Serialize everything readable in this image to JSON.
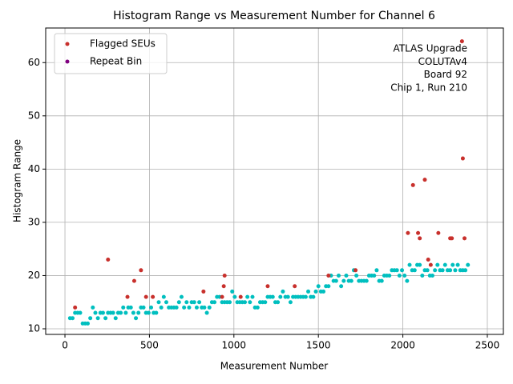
{
  "chart_data": {
    "type": "scatter",
    "title": "Histogram Range vs Measurement Number for Channel 6",
    "xlabel": "Measurement Number",
    "ylabel": "Histogram Range",
    "annotation": [
      "ATLAS Upgrade",
      "COLUTAv4",
      "Board 92",
      "Chip 1, Run 210"
    ],
    "xlim": [
      -114,
      2595
    ],
    "ylim": [
      8.95,
      66.5
    ],
    "xticks": [
      0,
      500,
      1000,
      1500,
      2000,
      2500
    ],
    "yticks": [
      10,
      20,
      30,
      40,
      50,
      60
    ],
    "grid": true,
    "legend": "upper left",
    "series": [
      {
        "color": "#00bfbf",
        "x": [
          30,
          45,
          60,
          75,
          90,
          105,
          120,
          135,
          150,
          165,
          180,
          195,
          210,
          225,
          240,
          255,
          270,
          285,
          300,
          315,
          330,
          345,
          360,
          375,
          390,
          405,
          420,
          435,
          450,
          465,
          480,
          495,
          510,
          525,
          540,
          555,
          570,
          585,
          600,
          615,
          630,
          645,
          660,
          675,
          690,
          705,
          720,
          735,
          750,
          765,
          780,
          795,
          810,
          825,
          840,
          855,
          870,
          885,
          900,
          915,
          930,
          945,
          960,
          975,
          990,
          1005,
          1020,
          1035,
          1050,
          1065,
          1080,
          1095,
          1110,
          1125,
          1140,
          1155,
          1170,
          1185,
          1200,
          1215,
          1230,
          1245,
          1260,
          1275,
          1290,
          1305,
          1320,
          1335,
          1350,
          1365,
          1380,
          1395,
          1410,
          1425,
          1440,
          1455,
          1470,
          1485,
          1500,
          1515,
          1530,
          1545,
          1560,
          1575,
          1590,
          1605,
          1620,
          1635,
          1650,
          1665,
          1680,
          1695,
          1710,
          1725,
          1740,
          1755,
          1770,
          1785,
          1800,
          1815,
          1830,
          1845,
          1860,
          1875,
          1890,
          1905,
          1920,
          1935,
          1950,
          1965,
          1980,
          1995,
          2010,
          2025,
          2040,
          2055,
          2070,
          2085,
          2100,
          2115,
          2130,
          2145,
          2160,
          2175,
          2190,
          2205,
          2220,
          2235,
          2250,
          2265,
          2280,
          2295,
          2310,
          2325,
          2340,
          2355,
          2370,
          2385
        ],
        "values": [
          12,
          12,
          13,
          13,
          13,
          11,
          11,
          11,
          12,
          14,
          13,
          12,
          13,
          13,
          12,
          13,
          13,
          13,
          12,
          13,
          13,
          14,
          13,
          14,
          14,
          13,
          12,
          13,
          14,
          14,
          13,
          13,
          14,
          13,
          13,
          15,
          14,
          16,
          15,
          14,
          14,
          14,
          14,
          15,
          16,
          14,
          15,
          14,
          15,
          15,
          14,
          15,
          14,
          14,
          13,
          14,
          15,
          15,
          16,
          16,
          15,
          15,
          15,
          15,
          17,
          16,
          15,
          15,
          15,
          15,
          16,
          15,
          16,
          14,
          14,
          15,
          15,
          15,
          16,
          16,
          16,
          15,
          15,
          16,
          17,
          16,
          16,
          15,
          16,
          16,
          16,
          16,
          16,
          16,
          17,
          16,
          16,
          17,
          18,
          17,
          17,
          18,
          18,
          20,
          19,
          19,
          20,
          18,
          19,
          20,
          19,
          19,
          21,
          20,
          19,
          19,
          19,
          19,
          20,
          20,
          20,
          21,
          19,
          19,
          20,
          20,
          20,
          21,
          21,
          21,
          20,
          21,
          20,
          19,
          22,
          21,
          21,
          22,
          22,
          20,
          21,
          21,
          20,
          20,
          21,
          22,
          21,
          21,
          22,
          21,
          21,
          22,
          21,
          22,
          21,
          21,
          21,
          22
        ]
      },
      {
        "name": "Flagged SEUs",
        "color": "#c8302c",
        "x": [
          60,
          255,
          370,
          410,
          450,
          480,
          520,
          820,
          930,
          940,
          945,
          1040,
          1200,
          1360,
          1560,
          1720,
          2030,
          2060,
          2090,
          2100,
          2130,
          2150,
          2165,
          2210,
          2280,
          2290,
          2350,
          2355,
          2365
        ],
        "values": [
          14,
          23,
          16,
          19,
          21,
          16,
          16,
          17,
          16,
          18,
          20,
          16,
          18,
          18,
          20,
          21,
          28,
          37,
          28,
          27,
          38,
          23,
          22,
          28,
          27,
          27,
          64,
          42,
          27
        ]
      },
      {
        "name": "Repeat Bin",
        "color": "#800080",
        "x": [],
        "values": []
      }
    ]
  }
}
